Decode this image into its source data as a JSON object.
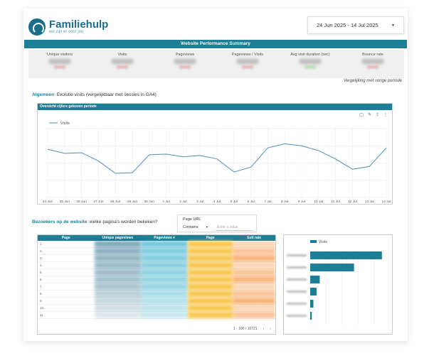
{
  "brand": {
    "title": "Familiehulp",
    "tagline": "we zijn er voor jou"
  },
  "date_range": {
    "label": "24 Jun 2025 - 14 Jul 2025"
  },
  "summary": {
    "title": "Website Performance Summary",
    "metrics": [
      {
        "label": "Unique visitors"
      },
      {
        "label": "Visits"
      },
      {
        "label": "Pageviews"
      },
      {
        "label": "Pageviews / Visits"
      },
      {
        "label": "Avg visit duration (sec)"
      },
      {
        "label": "Bounce rate"
      }
    ],
    "compare_note": "Vergelijking met vorige periode"
  },
  "section1": {
    "bold": "Algemeen",
    "text": ": Evolutie visits (vergelijkbaar met sessies in GA4)"
  },
  "line_chart": {
    "header": "Overzicht cijfers gekozen periode",
    "legend": "Visits"
  },
  "chart_data": {
    "type": "line",
    "categories": [
      "24 Jun",
      "25 Jun",
      "26 Jun",
      "27 Jun",
      "28 Jun",
      "29 Jun",
      "30 Jun",
      "1 Jul",
      "2 Jul",
      "3 Jul",
      "4 Jul",
      "5 Jul",
      "6 Jul",
      "7 Jul",
      "8 Jul",
      "9 Jul",
      "10 Jul",
      "11 Jul",
      "12 Jul",
      "13 Jul",
      "14 Jul"
    ],
    "series": [
      {
        "name": "Visits",
        "values": [
          0.7,
          0.64,
          0.65,
          0.53,
          0.35,
          0.36,
          0.62,
          0.63,
          0.59,
          0.61,
          0.56,
          0.37,
          0.44,
          0.72,
          0.78,
          0.75,
          0.68,
          0.56,
          0.41,
          0.45,
          0.72
        ]
      }
    ],
    "grid": true,
    "legend_position": "top-left"
  },
  "section2": {
    "bold": "Bezoekers op de website",
    "text": ": welke pagina's worden bekeken?"
  },
  "filter": {
    "label": "Page URL",
    "operator": "Contains",
    "placeholder": "Enter a value"
  },
  "table": {
    "columns": [
      "Page",
      "Unique pageviews",
      "Pageviews ▾",
      "Page",
      "Exit rate"
    ],
    "row_numbers": [
      "1.",
      "2.",
      "3.",
      "4.",
      "5.",
      "6.",
      "7.",
      "8.",
      "9.",
      "10.",
      "11."
    ],
    "pager": "1 - 100 / 10721"
  },
  "bar_chart": {
    "legend": "Visits"
  },
  "colors": {
    "brand": "#1a6e8a",
    "accent": "#1c7f95"
  },
  "icons": [
    "logo-icon",
    "chevron-down-icon",
    "comment-icon",
    "edit-icon",
    "export-icon",
    "more-icon",
    "chevron-left-icon",
    "chevron-right-icon"
  ]
}
